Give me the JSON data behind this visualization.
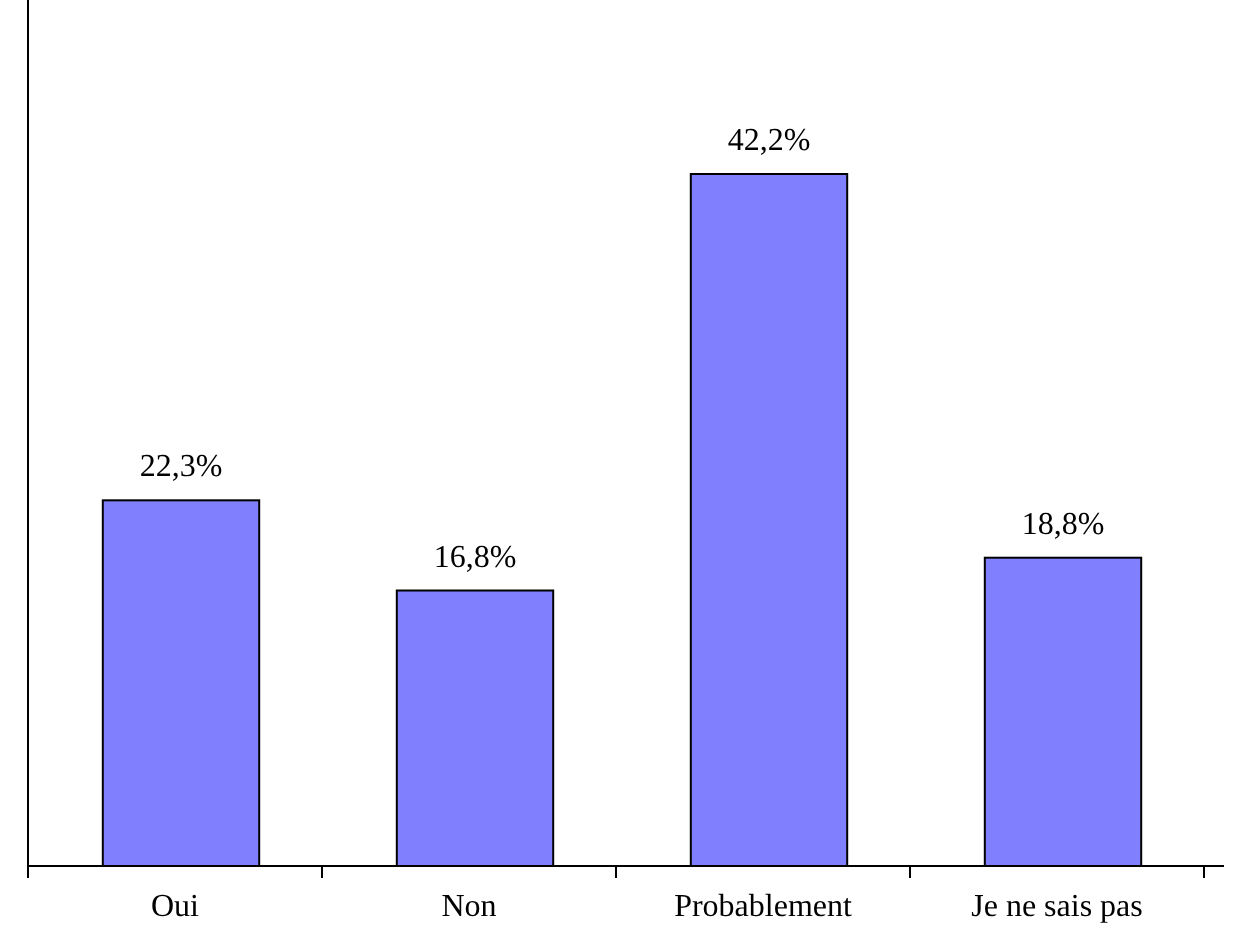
{
  "chart_data": {
    "type": "bar",
    "categories": [
      "Oui",
      "Non",
      "Probablement",
      "Je ne sais pas"
    ],
    "values": [
      22.3,
      16.8,
      42.2,
      18.8
    ],
    "value_labels": [
      "22,3%",
      "16,8%",
      "42,2%",
      "18,8%"
    ],
    "color": "#8080ff"
  }
}
